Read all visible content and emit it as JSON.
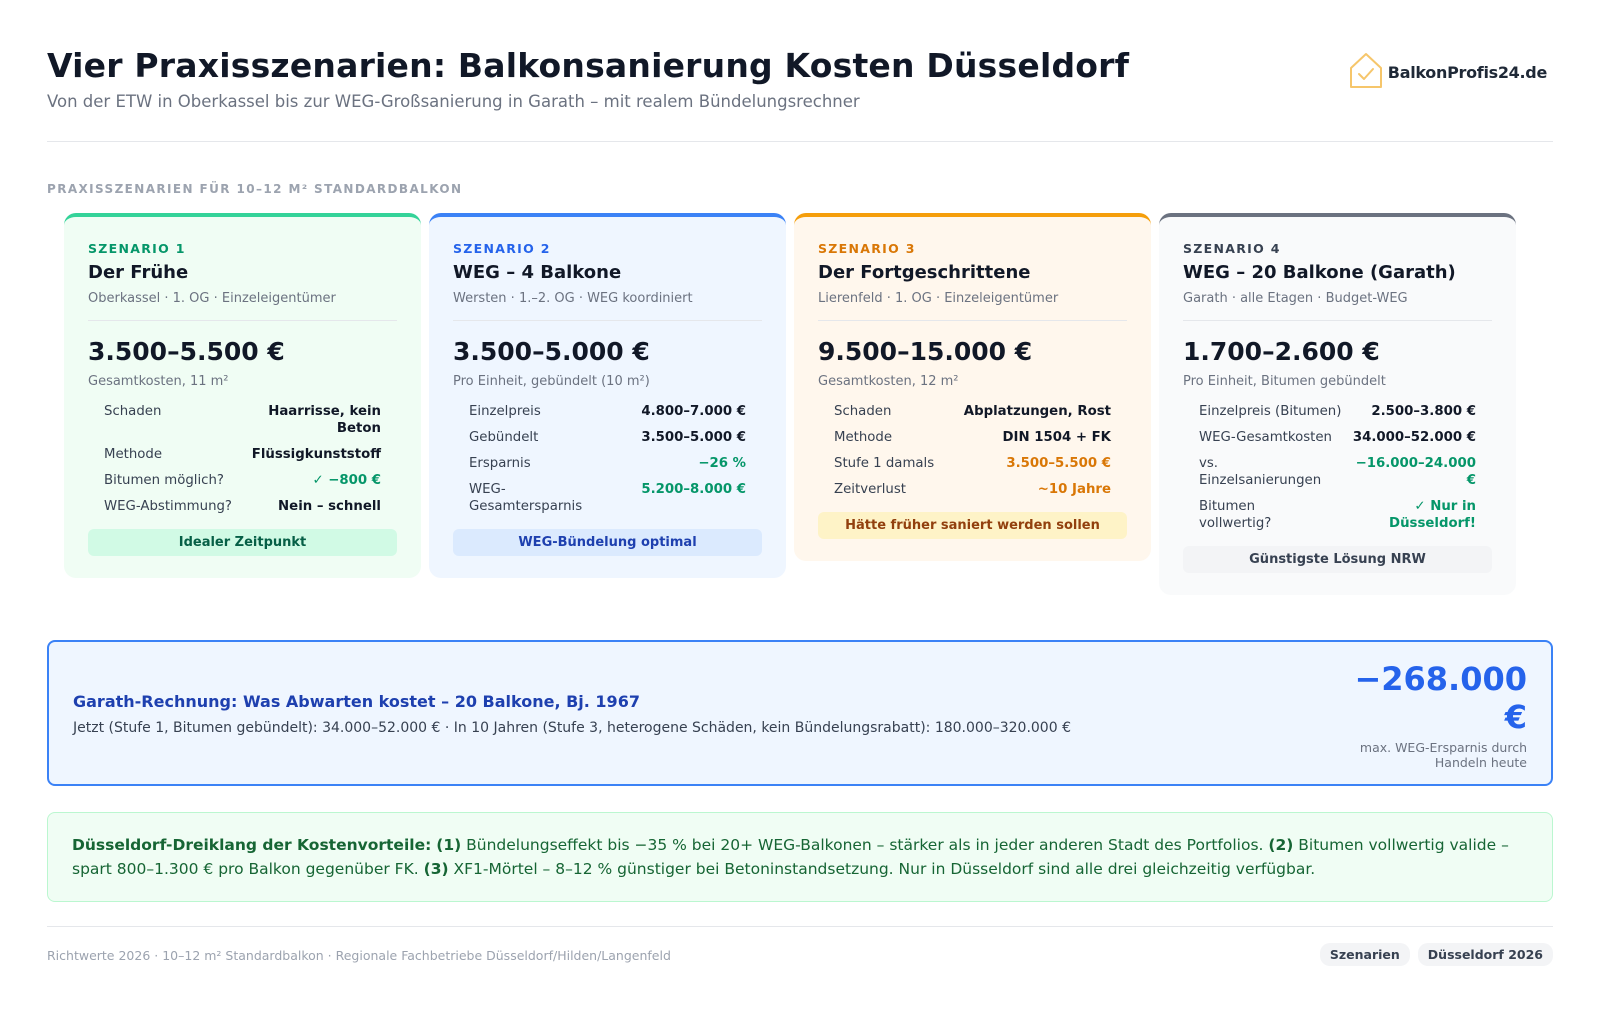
{
  "header": {
    "title": "Vier Praxisszenarien: Balkonsanierung Kosten Düsseldorf",
    "subtitle": "Von der ETW in Oberkassel bis zur WEG-Großsanierung in Garath – mit realem Bündelungsrechner",
    "logo_text": "BalkonProfis24.de",
    "logo_icon": "house-check-icon"
  },
  "section_label": "PRAXISSZENARIEN FÜR 10–12 M² STANDARDBALKON",
  "cards": [
    {
      "scenario": "SZENARIO 1",
      "name": "Der Frühe",
      "location": "Oberkassel · 1. OG · Einzeleigentümer",
      "price": "3.500–5.500 €",
      "price_note": "Gesamtkosten, 11 m²",
      "rows": [
        {
          "k": "Schaden",
          "v": "Haarrisse, kein Beton"
        },
        {
          "k": "Methode",
          "v": "Flüssigkunststoff"
        },
        {
          "k": "Bitumen möglich?",
          "v": "✓ −800 €"
        },
        {
          "k": "WEG-Abstimmung?",
          "v": "Nein – schnell"
        }
      ],
      "badge": "Idealer Zeitpunkt",
      "colors": {
        "accent": "#34d399",
        "bg": "#f0fdf4",
        "label": "#059669",
        "badge_bg": "#d1fae5",
        "badge_text": "#065f46"
      }
    },
    {
      "scenario": "SZENARIO 2",
      "name": "WEG – 4 Balkone",
      "location": "Wersten · 1.–2. OG · WEG koordiniert",
      "price": "3.500–5.000 €",
      "price_note": "Pro Einheit, gebündelt (10 m²)",
      "rows": [
        {
          "k": "Einzelpreis",
          "v": "4.800–7.000 €"
        },
        {
          "k": "Gebündelt",
          "v": "3.500–5.000 €"
        },
        {
          "k": "Ersparnis",
          "v": "−26 %"
        },
        {
          "k": "WEG-Gesamtersparnis",
          "v": "5.200–8.000 €"
        }
      ],
      "badge": "WEG-Bündelung optimal",
      "colors": {
        "accent": "#3b82f6",
        "bg": "#eff6ff",
        "label": "#2563eb",
        "badge_bg": "#dbeafe",
        "badge_text": "#1e40af"
      }
    },
    {
      "scenario": "SZENARIO 3",
      "name": "Der Fortgeschrittene",
      "location": "Lierenfeld · 1. OG · Einzeleigentümer",
      "price": "9.500–15.000 €",
      "price_note": "Gesamtkosten, 12 m²",
      "rows": [
        {
          "k": "Schaden",
          "v": "Abplatzungen, Rost"
        },
        {
          "k": "Methode",
          "v": "DIN 1504 + FK"
        },
        {
          "k": "Stufe 1 damals",
          "v": "3.500–5.500 €"
        },
        {
          "k": "Zeitverlust",
          "v": "~10 Jahre"
        }
      ],
      "badge": "Hätte früher saniert werden sollen",
      "colors": {
        "accent": "#f59e0b",
        "bg": "#fff7ed",
        "label": "#d97706",
        "badge_bg": "#fef3c7",
        "badge_text": "#92400e"
      }
    },
    {
      "scenario": "SZENARIO 4",
      "name": "WEG – 20 Balkone (Garath)",
      "location": "Garath · alle Etagen · Budget-WEG",
      "price": "1.700–2.600 €",
      "price_note": "Pro Einheit, Bitumen gebündelt",
      "rows": [
        {
          "k": "Einzelpreis (Bitumen)",
          "v": "2.500–3.800 €"
        },
        {
          "k": "WEG-Gesamtkosten",
          "v": "34.000–52.000 €"
        },
        {
          "k": "vs. Einzelsanierungen",
          "v": "−16.000–24.000 €"
        },
        {
          "k": "Bitumen vollwertig?",
          "v": "✓ Nur in Düsseldorf!"
        }
      ],
      "badge": "Günstigste Lösung NRW",
      "colors": {
        "accent": "#6b7280",
        "bg": "#f9fafb",
        "label": "#374151",
        "badge_bg": "#f3f4f6",
        "badge_text": "#374151"
      }
    }
  ],
  "calc": {
    "title": "Garath-Rechnung: Was Abwarten kostet – 20 Balkone, Bj. 1967",
    "text": "Jetzt (Stufe 1, Bitumen gebündelt): 34.000–52.000 € · In 10 Jahren (Stufe 3, heterogene Schäden, kein Bündelungsrabatt): 180.000–320.000 €",
    "big_value": "−268.000 €",
    "note": "max. WEG-Ersparnis durch Handeln heute"
  },
  "info": {
    "lead": "Düsseldorf-Dreiklang der Kostenvorteile:",
    "n1": "(1)",
    "t1": " Bündelungseffekt bis −35 % bei 20+ WEG-Balkonen – stärker als in jeder anderen Stadt des Portfolios. ",
    "n2": "(2)",
    "t2": " Bitumen vollwertig valide – spart 800–1.300 € pro Balkon gegenüber FK. ",
    "n3": "(3)",
    "t3": " XF1-Mörtel – 8–12 % günstiger bei Betoninstandsetzung. Nur in Düsseldorf sind alle drei gleichzeitig verfügbar."
  },
  "footer": {
    "left": "Richtwerte 2026 · 10–12 m² Standardbalkon · Regionale Fachbetriebe Düsseldorf/Hilden/Langenfeld",
    "tags": [
      "Szenarien",
      "Düsseldorf 2026"
    ]
  }
}
